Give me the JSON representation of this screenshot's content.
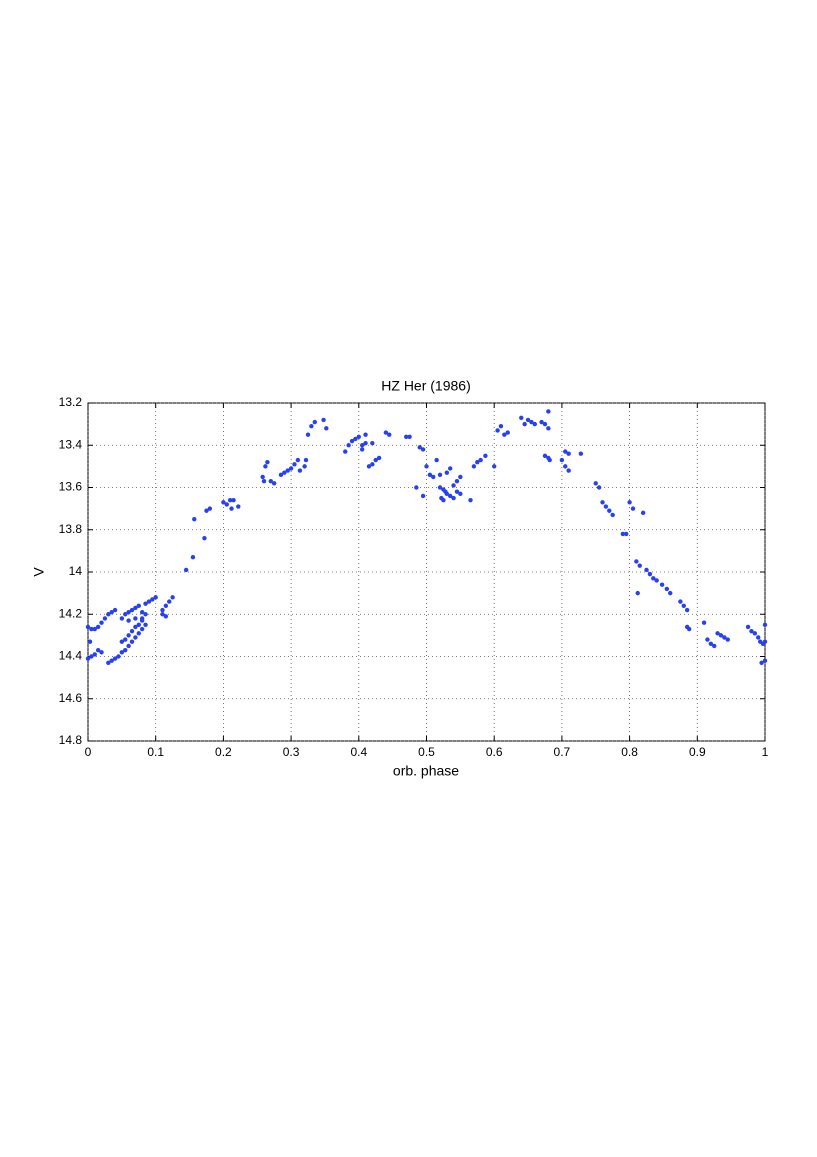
{
  "chart_data": {
    "type": "scatter",
    "title": "HZ Her (1986)",
    "x_label": "orb. phase",
    "y_label": "V",
    "xlim": [
      0,
      1
    ],
    "ylim": [
      13.2,
      14.8
    ],
    "y_reversed": true,
    "grid": true,
    "xticks": [
      0,
      0.1,
      0.2,
      0.3,
      0.4,
      0.5,
      0.6,
      0.7,
      0.8,
      0.9,
      1
    ],
    "yticks": [
      13.2,
      13.4,
      13.6,
      13.8,
      14,
      14.2,
      14.4,
      14.6,
      14.8
    ],
    "series": [
      {
        "color": "#2741f2",
        "x": [
          0,
          0.005,
          0.01,
          0.015,
          0.02,
          0.025,
          0.03,
          0.035,
          0.04,
          0,
          0.005,
          0.01,
          0.015,
          0.02,
          0.003,
          0.03,
          0.035,
          0.04,
          0.045,
          0.05,
          0.055,
          0.06,
          0.065,
          0.07,
          0.075,
          0.08,
          0.085,
          0.05,
          0.055,
          0.06,
          0.065,
          0.07,
          0.075,
          0.08,
          0.05,
          0.055,
          0.06,
          0.065,
          0.07,
          0.075,
          0.08,
          0.085,
          0.09,
          0.095,
          0.1,
          0.06,
          0.07,
          0.08,
          0.085,
          0.11,
          0.115,
          0.12,
          0.125,
          0.11,
          0.115,
          0.145,
          0.155,
          0.157,
          0.172,
          0.175,
          0.18,
          0.2,
          0.205,
          0.21,
          0.212,
          0.215,
          0.222,
          0.258,
          0.26,
          0.262,
          0.265,
          0.27,
          0.275,
          0.285,
          0.29,
          0.295,
          0.3,
          0.305,
          0.31,
          0.313,
          0.32,
          0.322,
          0.325,
          0.33,
          0.335,
          0.348,
          0.352,
          0.38,
          0.385,
          0.39,
          0.395,
          0.4,
          0.405,
          0.41,
          0.41,
          0.415,
          0.42,
          0.425,
          0.43,
          0.405,
          0.42,
          0.44,
          0.445,
          0.47,
          0.475,
          0.485,
          0.49,
          0.495,
          0.495,
          0.5,
          0.505,
          0.51,
          0.515,
          0.52,
          0.52,
          0.522,
          0.525,
          0.525,
          0.528,
          0.53,
          0.53,
          0.535,
          0.535,
          0.54,
          0.54,
          0.545,
          0.545,
          0.55,
          0.55,
          0.565,
          0.57,
          0.575,
          0.58,
          0.587,
          0.6,
          0.605,
          0.61,
          0.615,
          0.62,
          0.64,
          0.645,
          0.65,
          0.655,
          0.66,
          0.67,
          0.675,
          0.675,
          0.68,
          0.68,
          0.68,
          0.682,
          0.7,
          0.705,
          0.705,
          0.71,
          0.71,
          0.728,
          0.75,
          0.755,
          0.76,
          0.765,
          0.77,
          0.775,
          0.79,
          0.795,
          0.8,
          0.805,
          0.81,
          0.815,
          0.812,
          0.82,
          0.825,
          0.83,
          0.835,
          0.84,
          0.848,
          0.855,
          0.86,
          0.875,
          0.88,
          0.885,
          0.885,
          0.888,
          0.91,
          0.915,
          0.92,
          0.925,
          0.93,
          0.935,
          0.94,
          0.945,
          0.975,
          0.98,
          0.985,
          0.99,
          0.993,
          0.995,
          0.997,
          1,
          1,
          1
        ],
        "values": [
          14.26,
          14.27,
          14.27,
          14.26,
          14.24,
          14.22,
          14.2,
          14.19,
          14.18,
          14.41,
          14.4,
          14.39,
          14.37,
          14.38,
          14.33,
          14.43,
          14.42,
          14.41,
          14.4,
          14.38,
          14.37,
          14.35,
          14.33,
          14.31,
          14.29,
          14.27,
          14.25,
          14.33,
          14.32,
          14.3,
          14.28,
          14.26,
          14.25,
          14.23,
          14.22,
          14.2,
          14.19,
          14.18,
          14.17,
          14.16,
          14.19,
          14.15,
          14.14,
          14.13,
          14.12,
          14.23,
          14.22,
          14.22,
          14.2,
          14.18,
          14.16,
          14.14,
          14.12,
          14.2,
          14.21,
          13.99,
          13.93,
          13.75,
          13.84,
          13.71,
          13.7,
          13.67,
          13.68,
          13.66,
          13.7,
          13.66,
          13.69,
          13.55,
          13.57,
          13.5,
          13.48,
          13.57,
          13.58,
          13.54,
          13.53,
          13.52,
          13.51,
          13.49,
          13.47,
          13.52,
          13.5,
          13.47,
          13.35,
          13.31,
          13.29,
          13.28,
          13.32,
          13.43,
          13.4,
          13.38,
          13.37,
          13.36,
          13.42,
          13.39,
          13.35,
          13.5,
          13.49,
          13.47,
          13.46,
          13.4,
          13.39,
          13.34,
          13.35,
          13.36,
          13.36,
          13.6,
          13.41,
          13.42,
          13.64,
          13.5,
          13.54,
          13.55,
          13.47,
          13.54,
          13.6,
          13.65,
          13.66,
          13.61,
          13.62,
          13.63,
          13.53,
          13.51,
          13.64,
          13.65,
          13.59,
          13.57,
          13.62,
          13.63,
          13.55,
          13.66,
          13.5,
          13.48,
          13.47,
          13.45,
          13.5,
          13.33,
          13.31,
          13.35,
          13.34,
          13.27,
          13.3,
          13.28,
          13.29,
          13.3,
          13.29,
          13.3,
          13.45,
          13.46,
          13.24,
          13.32,
          13.47,
          13.47,
          13.43,
          13.5,
          13.44,
          13.52,
          13.44,
          13.58,
          13.6,
          13.67,
          13.69,
          13.71,
          13.73,
          13.82,
          13.82,
          13.67,
          13.7,
          13.95,
          13.97,
          14.1,
          13.72,
          13.99,
          14.01,
          14.03,
          14.04,
          14.06,
          14.08,
          14.1,
          14.14,
          14.16,
          14.18,
          14.26,
          14.27,
          14.24,
          14.32,
          14.34,
          14.35,
          14.29,
          14.3,
          14.31,
          14.32,
          14.26,
          14.28,
          14.29,
          14.31,
          14.33,
          14.43,
          14.34,
          14.25,
          14.42,
          14.33
        ]
      }
    ]
  }
}
